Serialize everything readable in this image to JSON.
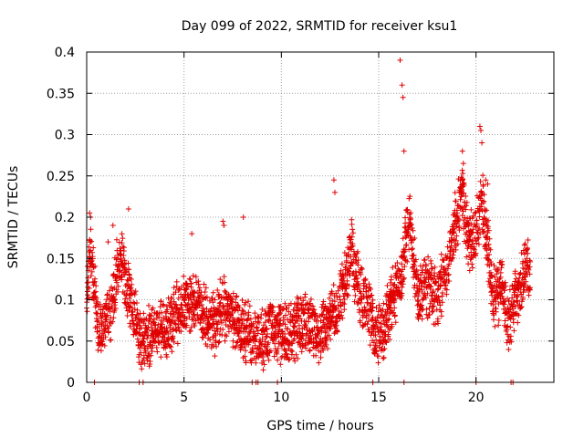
{
  "chart_data": {
    "type": "scatter",
    "title": "Day 099 of 2022, SRMTID for receiver ksu1",
    "xlabel": "GPS time / hours",
    "ylabel": "SRMTID / TECUs",
    "xlim": [
      0,
      24
    ],
    "ylim": [
      0,
      0.4
    ],
    "x_ticks": [
      "0",
      "5",
      "10",
      "15",
      "20"
    ],
    "x_tick_values": [
      0,
      5,
      10,
      15,
      20
    ],
    "y_ticks": [
      "0",
      "0.05",
      "0.1",
      "0.15",
      "0.2",
      "0.25",
      "0.3",
      "0.35",
      "0.4"
    ],
    "y_tick_values": [
      0,
      0.05,
      0.1,
      0.15,
      0.2,
      0.25,
      0.3,
      0.35,
      0.4
    ],
    "grid": true,
    "marker": "plus",
    "marker_color": "#e00000",
    "series": [
      {
        "name": "SRMTID",
        "profile_x": [
          0.0,
          0.2,
          0.4,
          0.6,
          0.8,
          1.0,
          1.3,
          1.6,
          1.8,
          2.0,
          2.3,
          2.6,
          3.0,
          3.5,
          4.0,
          4.5,
          5.0,
          5.5,
          6.0,
          6.5,
          7.0,
          7.5,
          8.0,
          8.5,
          9.0,
          9.5,
          10.0,
          10.5,
          11.0,
          11.5,
          12.0,
          12.5,
          12.8,
          13.0,
          13.3,
          13.6,
          14.0,
          14.5,
          14.8,
          15.0,
          15.3,
          15.6,
          16.0,
          16.2,
          16.4,
          16.6,
          16.8,
          17.0,
          17.5,
          18.0,
          18.5,
          19.0,
          19.3,
          19.6,
          20.0,
          20.3,
          20.6,
          20.8,
          21.0,
          21.3,
          21.6,
          22.0,
          22.3,
          22.6,
          22.8
        ],
        "profile_y": [
          0.1,
          0.16,
          0.12,
          0.07,
          0.06,
          0.08,
          0.09,
          0.14,
          0.16,
          0.12,
          0.09,
          0.06,
          0.05,
          0.07,
          0.06,
          0.08,
          0.09,
          0.1,
          0.08,
          0.07,
          0.09,
          0.08,
          0.06,
          0.06,
          0.05,
          0.07,
          0.06,
          0.06,
          0.07,
          0.07,
          0.06,
          0.08,
          0.09,
          0.1,
          0.12,
          0.16,
          0.11,
          0.09,
          0.06,
          0.06,
          0.07,
          0.09,
          0.12,
          0.13,
          0.18,
          0.2,
          0.15,
          0.1,
          0.12,
          0.1,
          0.14,
          0.2,
          0.23,
          0.17,
          0.18,
          0.22,
          0.17,
          0.11,
          0.1,
          0.12,
          0.07,
          0.1,
          0.12,
          0.15,
          0.11
        ],
        "spikes_x": [
          16.1,
          16.2,
          16.25,
          16.3,
          19.3,
          19.35,
          20.2,
          20.25,
          20.3,
          20.5,
          20.6,
          12.7,
          12.75,
          0.15,
          0.2,
          1.1,
          1.35,
          2.15,
          5.4,
          7.0,
          7.05,
          8.05
        ],
        "spikes_y": [
          0.39,
          0.36,
          0.345,
          0.28,
          0.28,
          0.265,
          0.31,
          0.305,
          0.29,
          0.245,
          0.24,
          0.245,
          0.23,
          0.205,
          0.2,
          0.17,
          0.19,
          0.21,
          0.18,
          0.195,
          0.19,
          0.2
        ],
        "zero_points_x": [
          0.4,
          2.7,
          2.9,
          8.5,
          8.7,
          8.8,
          9.8,
          14.7,
          16.3,
          20.0,
          21.8,
          21.9
        ]
      }
    ]
  }
}
